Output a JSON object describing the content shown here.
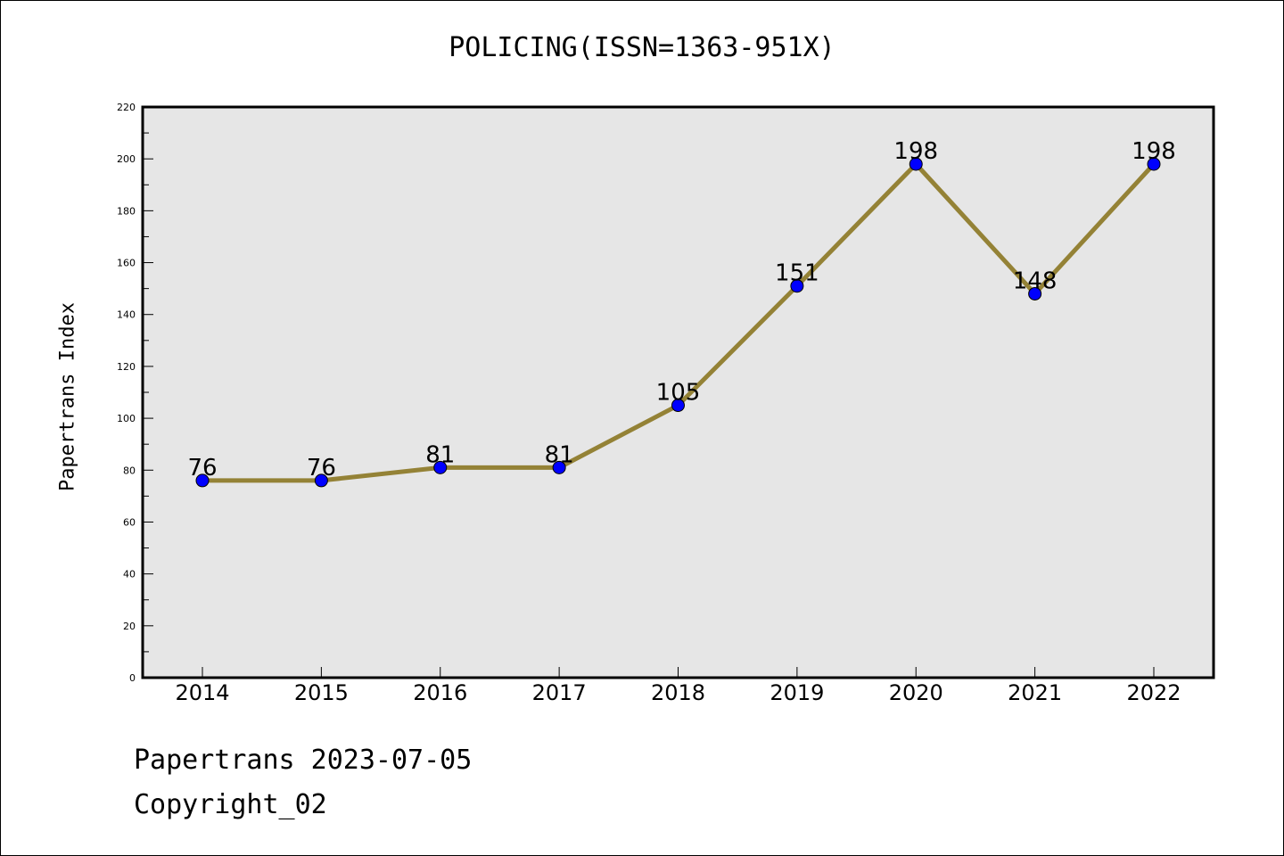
{
  "chart_data": {
    "type": "line",
    "title": "POLICING(ISSN=1363-951X)",
    "xlabel": "",
    "ylabel": "Papertrans Index",
    "categories": [
      "2014",
      "2015",
      "2016",
      "2017",
      "2018",
      "2019",
      "2020",
      "2021",
      "2022"
    ],
    "series": [
      {
        "values": [
          76,
          76,
          81,
          81,
          105,
          151,
          198,
          148,
          198
        ]
      }
    ],
    "ylim": [
      0,
      220
    ],
    "yticks": [
      0,
      20,
      40,
      60,
      80,
      100,
      120,
      140,
      160,
      180,
      200,
      220
    ],
    "grid": false,
    "data_labels": true,
    "colors": {
      "line": "#948236",
      "marker": "#0000ff",
      "plot_background": "#e6e6e6"
    }
  },
  "footer": {
    "line1": "Papertrans 2023-07-05",
    "line2": "Copyright_02"
  }
}
